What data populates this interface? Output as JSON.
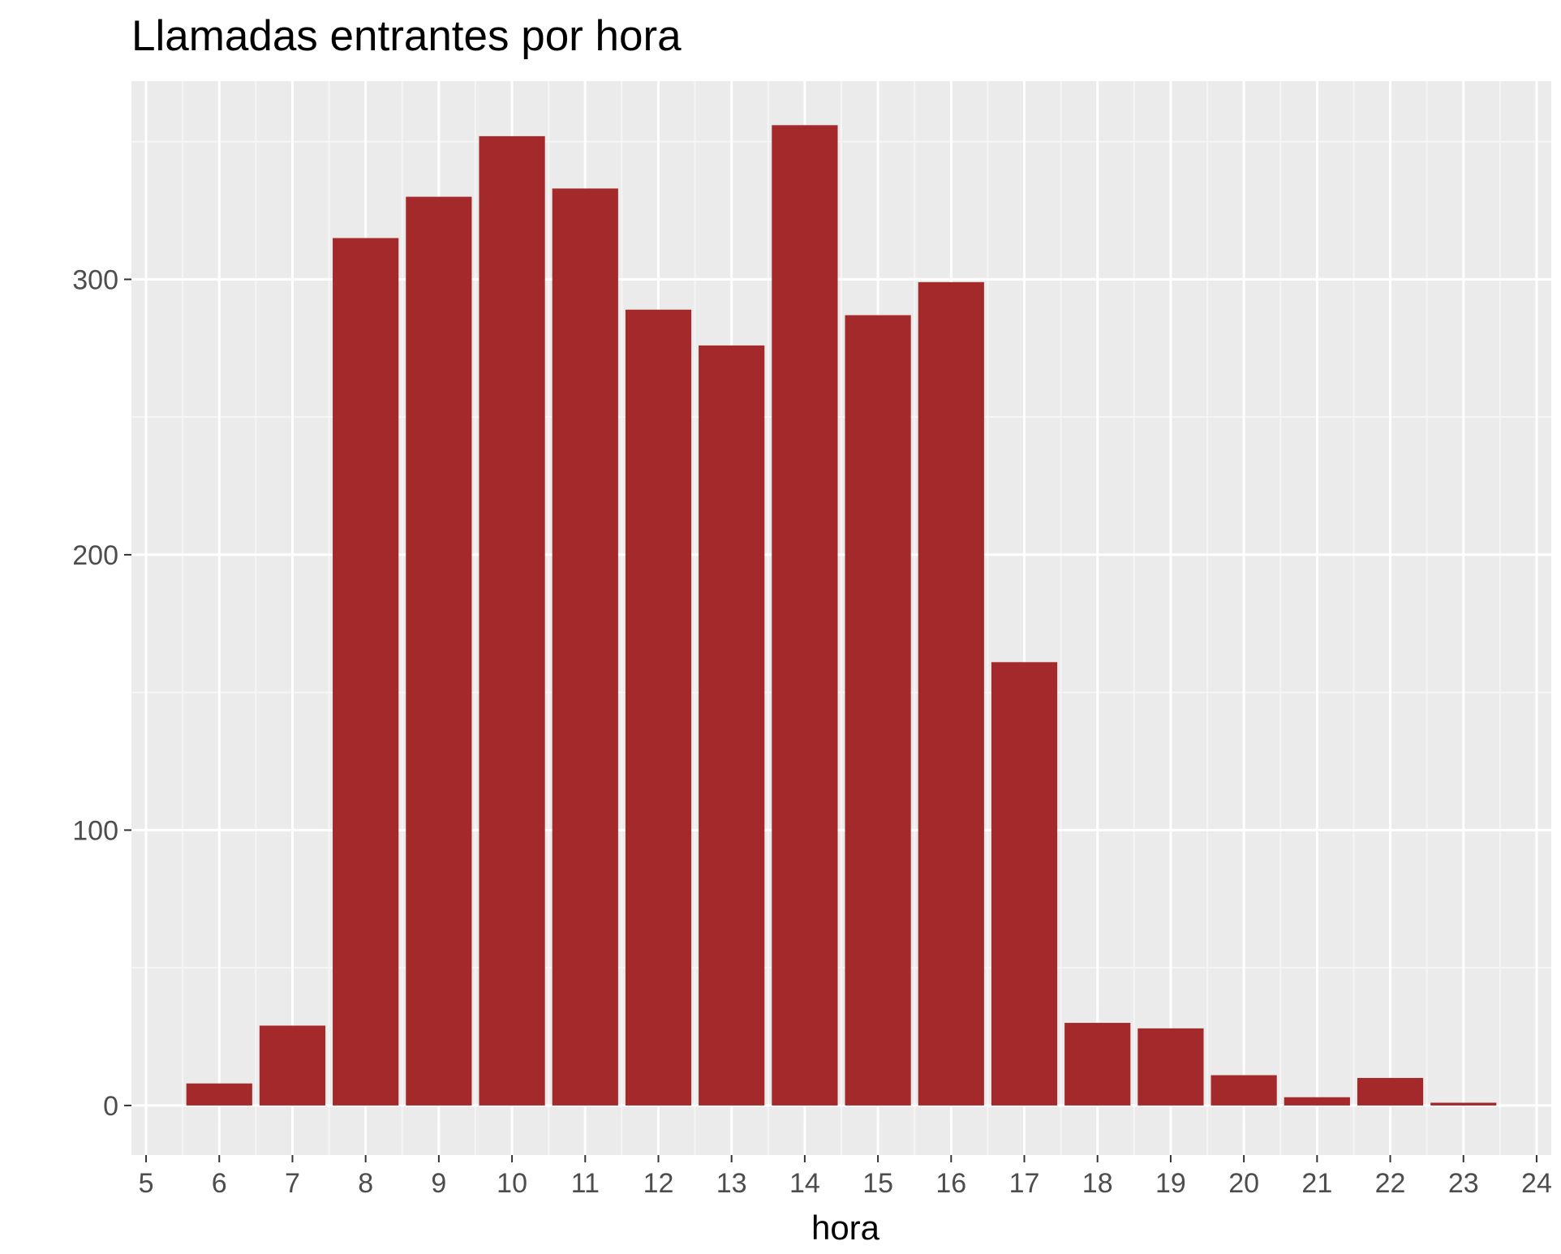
{
  "chart_data": {
    "type": "bar",
    "title": "Llamadas entrantes por hora",
    "xlabel": "hora",
    "ylabel": "",
    "categories": [
      6,
      7,
      8,
      9,
      10,
      11,
      12,
      13,
      14,
      15,
      16,
      17,
      18,
      19,
      20,
      21,
      22,
      23
    ],
    "values": [
      8,
      29,
      315,
      330,
      352,
      333,
      289,
      276,
      356,
      287,
      299,
      161,
      30,
      28,
      11,
      3,
      10,
      1
    ],
    "xlim": [
      4.8,
      24.2
    ],
    "ylim": [
      -18,
      372
    ],
    "xticks": [
      "5",
      "6",
      "7",
      "8",
      "9",
      "10",
      "11",
      "12",
      "13",
      "14",
      "15",
      "16",
      "17",
      "18",
      "19",
      "20",
      "21",
      "22",
      "23",
      "24"
    ],
    "yticks": [
      "0",
      "100",
      "200",
      "300"
    ],
    "grid": true,
    "legend": "none",
    "colors": {
      "bar": "#a3292b",
      "panel_background": "#ebebeb",
      "grid_major": "#ffffff",
      "grid_minor": "#f5f5f5",
      "tick_label": "#4d4d4d"
    }
  }
}
